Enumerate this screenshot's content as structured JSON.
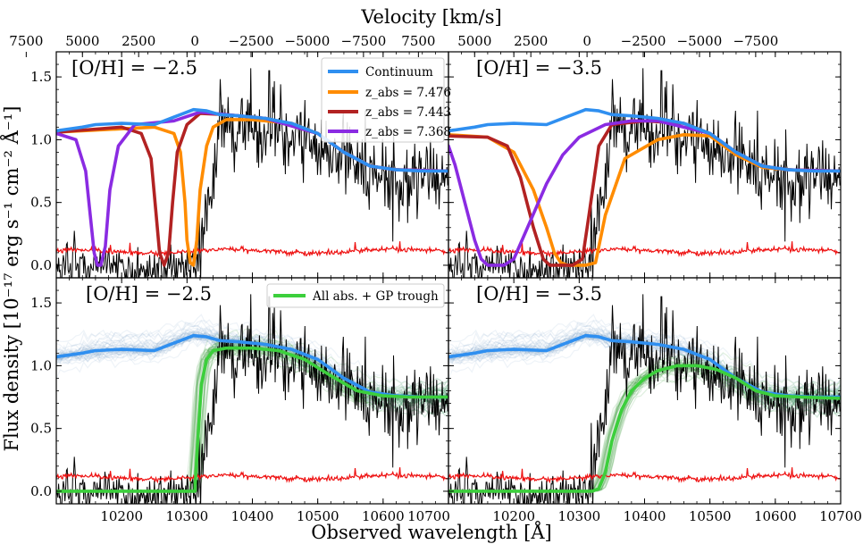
{
  "chart_data": {
    "type": "line",
    "figure_title": "Velocity [km/s]",
    "xlabel": "Observed wavelength [Å]",
    "ylabel": "Flux density [10⁻¹⁷ erg s⁻¹ cm⁻² Å⁻¹]",
    "xlim": [
      10100,
      10700
    ],
    "ylim": [
      -0.1,
      1.7
    ],
    "x_ticks": [
      10200,
      10300,
      10400,
      10500,
      10600,
      10700
    ],
    "x_tick_labels": [
      "10200",
      "10300",
      "10400",
      "10500",
      "10600",
      "10700"
    ],
    "y_ticks": [
      0.0,
      0.5,
      1.0,
      1.5
    ],
    "y_tick_labels": [
      "0.0",
      "0.5",
      "1.0",
      "1.5"
    ],
    "velocity_ticks": [
      7500,
      5000,
      2500,
      0,
      -2500,
      -5000,
      -7500
    ],
    "velocity_tick_labels": [
      "7500",
      "5000",
      "2500",
      "0",
      "−2500",
      "−5000",
      "−7500"
    ],
    "velocity_reference_wavelength": 10312,
    "colors": {
      "continuum": "#2f8ff0",
      "z7476": "#ff8c00",
      "z7443": "#b22222",
      "z7368": "#8a2be2",
      "all_abs": "#3ccf3c",
      "data": "#000000",
      "error": "#ee1111",
      "gp_samples_blue": "#7d9fc8",
      "gp_samples_green": "#3a9a3a"
    },
    "panels": [
      {
        "label": "[O/H] = −2.5",
        "legend": [
          {
            "label": "Continuum",
            "color_key": "continuum"
          },
          {
            "label": "z_abs = 7.476",
            "color_key": "z7476"
          },
          {
            "label": "z_abs = 7.443",
            "color_key": "z7443"
          },
          {
            "label": "z_abs = 7.368",
            "color_key": "z7368"
          }
        ],
        "series": [
          {
            "name": "Continuum",
            "color_key": "continuum",
            "x": [
              10100,
              10140,
              10160,
              10200,
              10250,
              10280,
              10310,
              10330,
              10350,
              10380,
              10420,
              10460,
              10500,
              10540,
              10580,
              10620,
              10660,
              10700
            ],
            "y": [
              1.07,
              1.1,
              1.12,
              1.13,
              1.12,
              1.18,
              1.24,
              1.23,
              1.2,
              1.19,
              1.17,
              1.13,
              1.05,
              0.9,
              0.79,
              0.76,
              0.75,
              0.75
            ]
          },
          {
            "name": "z_abs = 7.476",
            "color_key": "z7476",
            "x": [
              10100,
              10250,
              10280,
              10290,
              10297,
              10300,
              10305,
              10310,
              10315,
              10320,
              10330,
              10340,
              10360,
              10400,
              10460,
              10500,
              10540,
              10580,
              10620,
              10700
            ],
            "y": [
              1.06,
              1.1,
              1.05,
              0.9,
              0.5,
              0.2,
              0.02,
              0.0,
              0.2,
              0.6,
              0.95,
              1.1,
              1.16,
              1.16,
              1.13,
              1.05,
              0.9,
              0.79,
              0.76,
              0.75
            ]
          },
          {
            "name": "z_abs = 7.443",
            "color_key": "z7443",
            "x": [
              10100,
              10200,
              10230,
              10245,
              10252,
              10258,
              10265,
              10272,
              10278,
              10285,
              10300,
              10320,
              10360,
              10420,
              10500,
              10540,
              10580,
              10620,
              10700
            ],
            "y": [
              1.06,
              1.1,
              1.05,
              0.85,
              0.45,
              0.1,
              0.0,
              0.1,
              0.5,
              0.9,
              1.12,
              1.21,
              1.2,
              1.17,
              1.05,
              0.9,
              0.79,
              0.76,
              0.75
            ]
          },
          {
            "name": "z_abs = 7.368",
            "color_key": "z7368",
            "x": [
              10100,
              10130,
              10145,
              10152,
              10158,
              10163,
              10168,
              10175,
              10182,
              10195,
              10220,
              10280,
              10320,
              10360,
              10420,
              10500,
              10540,
              10580,
              10620,
              10700
            ],
            "y": [
              1.05,
              1.0,
              0.75,
              0.4,
              0.1,
              0.0,
              0.0,
              0.15,
              0.6,
              0.95,
              1.12,
              1.15,
              1.22,
              1.2,
              1.17,
              1.05,
              0.9,
              0.79,
              0.76,
              0.75
            ]
          }
        ]
      },
      {
        "label": "[O/H] = −3.5",
        "series": [
          {
            "name": "Continuum",
            "color_key": "continuum",
            "x": [
              10100,
              10140,
              10160,
              10200,
              10250,
              10280,
              10310,
              10330,
              10350,
              10380,
              10420,
              10460,
              10500,
              10540,
              10580,
              10620,
              10660,
              10700
            ],
            "y": [
              1.07,
              1.1,
              1.12,
              1.13,
              1.12,
              1.18,
              1.24,
              1.23,
              1.2,
              1.19,
              1.17,
              1.13,
              1.05,
              0.9,
              0.79,
              0.76,
              0.75,
              0.75
            ]
          },
          {
            "name": "z_abs = 7.476",
            "color_key": "z7476",
            "x": [
              10100,
              10160,
              10200,
              10230,
              10250,
              10262,
              10272,
              10282,
              10310,
              10325,
              10340,
              10370,
              10420,
              10460,
              10500,
              10540,
              10580,
              10620,
              10700
            ],
            "y": [
              1.04,
              1.02,
              0.9,
              0.6,
              0.3,
              0.1,
              0.02,
              0.0,
              0.0,
              0.02,
              0.4,
              0.85,
              1.0,
              1.04,
              1.03,
              0.88,
              0.78,
              0.76,
              0.75
            ]
          },
          {
            "name": "z_abs = 7.443",
            "color_key": "z7443",
            "x": [
              10100,
              10160,
              10190,
              10210,
              10230,
              10245,
              10255,
              10290,
              10305,
              10315,
              10330,
              10350,
              10400,
              10460,
              10500,
              10540,
              10580,
              10620,
              10700
            ],
            "y": [
              1.03,
              1.02,
              0.95,
              0.7,
              0.3,
              0.05,
              0.0,
              0.0,
              0.05,
              0.4,
              0.95,
              1.12,
              1.15,
              1.13,
              1.05,
              0.9,
              0.79,
              0.76,
              0.75
            ]
          },
          {
            "name": "z_abs = 7.368",
            "color_key": "z7368",
            "x": [
              10100,
              10110,
              10125,
              10140,
              10150,
              10160,
              10185,
              10200,
              10225,
              10250,
              10275,
              10300,
              10340,
              10380,
              10420,
              10500,
              10540,
              10580,
              10620,
              10700
            ],
            "y": [
              0.95,
              0.8,
              0.5,
              0.2,
              0.05,
              0.0,
              0.0,
              0.05,
              0.35,
              0.65,
              0.88,
              1.02,
              1.12,
              1.15,
              1.15,
              1.05,
              0.9,
              0.79,
              0.76,
              0.75
            ]
          }
        ]
      },
      {
        "label": "[O/H] = −2.5",
        "legend": [
          {
            "label": "All abs. + GP trough",
            "color_key": "all_abs"
          }
        ],
        "series": [
          {
            "name": "Continuum",
            "color_key": "continuum",
            "x": [
              10100,
              10140,
              10160,
              10200,
              10250,
              10280,
              10310,
              10330,
              10350,
              10380,
              10420,
              10460,
              10500,
              10540,
              10580,
              10620,
              10660,
              10700
            ],
            "y": [
              1.07,
              1.1,
              1.12,
              1.13,
              1.12,
              1.18,
              1.24,
              1.23,
              1.2,
              1.19,
              1.17,
              1.13,
              1.05,
              0.9,
              0.79,
              0.76,
              0.75,
              0.75
            ]
          },
          {
            "name": "All abs. + GP trough",
            "color_key": "all_abs",
            "x": [
              10100,
              10300,
              10312,
              10317,
              10322,
              10330,
              10340,
              10360,
              10400,
              10440,
              10480,
              10520,
              10560,
              10600,
              10640,
              10700
            ],
            "y": [
              0.0,
              0.0,
              0.0,
              0.45,
              0.85,
              1.05,
              1.12,
              1.14,
              1.14,
              1.12,
              1.05,
              0.92,
              0.8,
              0.76,
              0.75,
              0.75
            ]
          }
        ]
      },
      {
        "label": "[O/H] = −3.5",
        "series": [
          {
            "name": "Continuum",
            "color_key": "continuum",
            "x": [
              10100,
              10140,
              10160,
              10200,
              10250,
              10280,
              10310,
              10330,
              10350,
              10380,
              10420,
              10460,
              10500,
              10540,
              10580,
              10620,
              10660,
              10700
            ],
            "y": [
              1.07,
              1.1,
              1.12,
              1.13,
              1.12,
              1.18,
              1.24,
              1.23,
              1.2,
              1.19,
              1.17,
              1.13,
              1.05,
              0.9,
              0.79,
              0.76,
              0.75,
              0.75
            ]
          },
          {
            "name": "All abs. + GP trough",
            "color_key": "all_abs",
            "x": [
              10100,
              10320,
              10330,
              10340,
              10350,
              10365,
              10380,
              10400,
              10420,
              10450,
              10480,
              10510,
              10540,
              10570,
              10600,
              10640,
              10700
            ],
            "y": [
              0.0,
              0.0,
              0.02,
              0.15,
              0.4,
              0.65,
              0.8,
              0.9,
              0.96,
              1.0,
              1.0,
              0.97,
              0.9,
              0.8,
              0.76,
              0.75,
              0.74
            ]
          }
        ]
      }
    ]
  }
}
